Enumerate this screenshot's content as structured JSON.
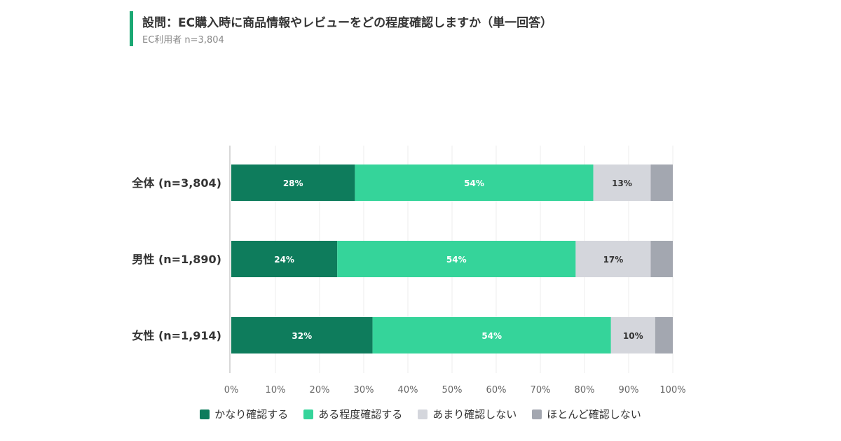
{
  "header": {
    "title": "設問：EC購入時に商品情報やレビューをどの程度確認しますか（単一回答）",
    "subtitle": "EC利用者 n=3,804"
  },
  "chart_data": {
    "type": "bar",
    "orientation": "horizontal",
    "stacked": true,
    "categories": [
      "全体 (n=3,804)",
      "男性 (n=1,890)",
      "女性 (n=1,914)"
    ],
    "series": [
      {
        "name": "かなり確認する",
        "color": "#0e7c5c",
        "values": [
          28,
          24,
          32
        ],
        "labels": [
          "28%",
          "24%",
          "32%"
        ]
      },
      {
        "name": "ある程度確認する",
        "color": "#35d49a",
        "values": [
          54,
          54,
          54
        ],
        "labels": [
          "54%",
          "54%",
          "54%"
        ]
      },
      {
        "name": "あまり確認しない",
        "color": "#d4d6dc",
        "values": [
          13,
          17,
          10
        ],
        "labels": [
          "13%",
          "17%",
          "10%"
        ]
      },
      {
        "name": "ほとんど確認しない",
        "color": "#a3a7b0",
        "values": [
          5,
          5,
          4
        ],
        "labels": [
          "",
          "",
          ""
        ]
      }
    ],
    "xlim": [
      0,
      100
    ],
    "xticks": [
      "0%",
      "10%",
      "20%",
      "30%",
      "40%",
      "50%",
      "60%",
      "70%",
      "80%",
      "90%",
      "100%"
    ],
    "grid": true,
    "legend_position": "bottom"
  }
}
